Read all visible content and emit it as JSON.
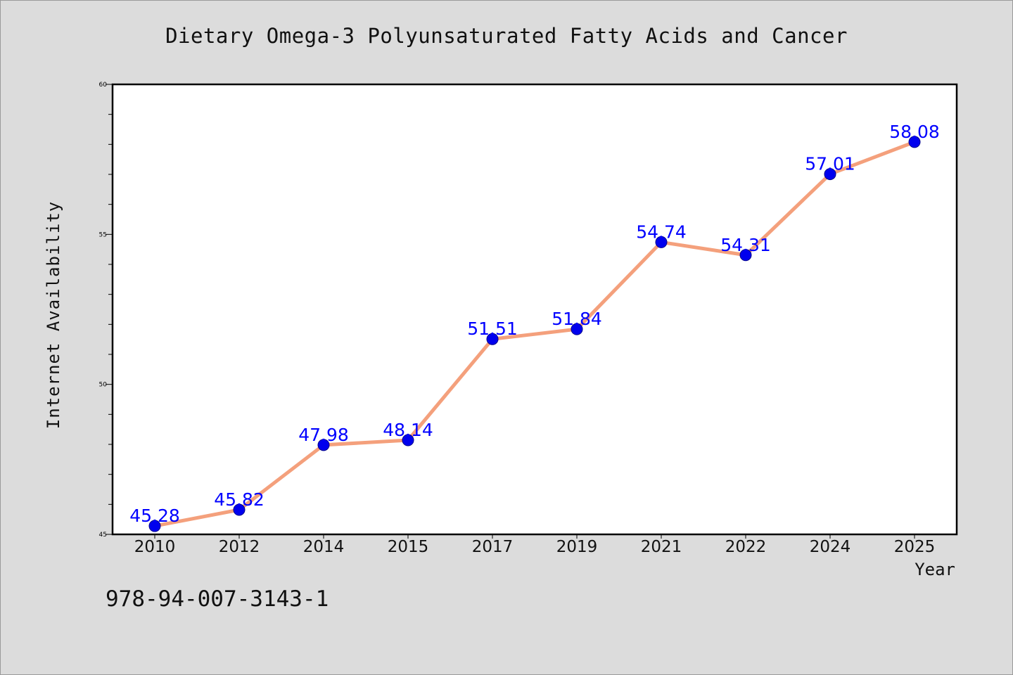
{
  "chart_data": {
    "type": "line",
    "title": "Dietary Omega-3 Polyunsaturated Fatty Acids and Cancer",
    "xlabel": "Year",
    "ylabel": "Internet Availability",
    "categories": [
      "2010",
      "2012",
      "2014",
      "2015",
      "2017",
      "2019",
      "2021",
      "2022",
      "2024",
      "2025"
    ],
    "series": [
      {
        "values": [
          45.28,
          45.82,
          47.98,
          48.14,
          51.51,
          51.84,
          54.74,
          54.31,
          57.01,
          58.08
        ],
        "labels": [
          "45.28",
          "45.82",
          "47.98",
          "48.14",
          "51.51",
          "51.84",
          "54.74",
          "54.31",
          "57.01",
          "58.08"
        ]
      }
    ],
    "ylim": [
      45,
      60
    ],
    "yticks": [
      45,
      50,
      55,
      60
    ],
    "ytick_labels": [
      "45",
      "50",
      "55",
      "60"
    ],
    "grid": false,
    "colors": {
      "line": "#f4a07c",
      "marker": "#0000ee",
      "data_label": "#0000ff",
      "background": "#dcdcdc",
      "plot_background": "#ffffff"
    }
  },
  "footer": {
    "isbn": "978-94-007-3143-1"
  }
}
